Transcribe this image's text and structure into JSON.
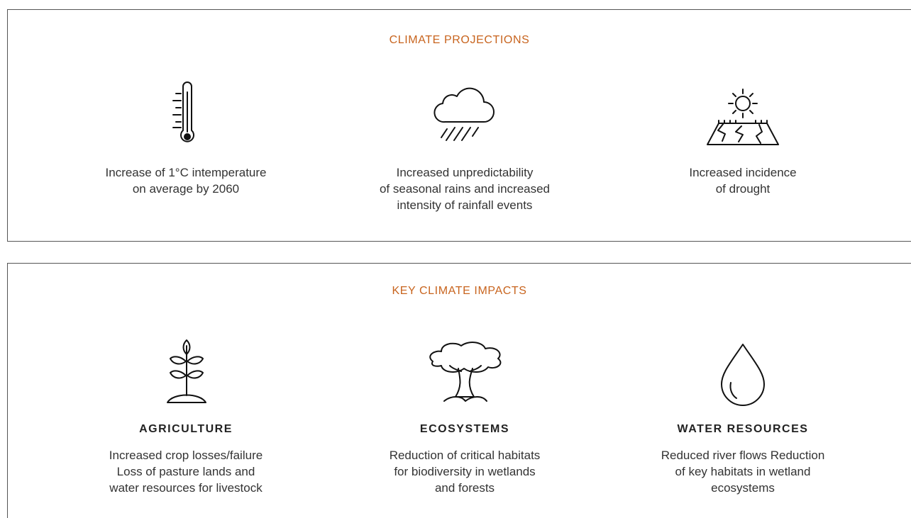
{
  "projections": {
    "title": "CLIMATE PROJECTIONS",
    "items": [
      {
        "lines": [
          "Increase of 1°C intemperature",
          "on average by 2060"
        ]
      },
      {
        "lines": [
          "Increased unpredictability",
          "of seasonal rains and increased",
          "intensity of rainfall events"
        ]
      },
      {
        "lines": [
          "Increased incidence",
          "of drought"
        ]
      }
    ]
  },
  "impacts": {
    "title": "KEY CLIMATE IMPACTS",
    "items": [
      {
        "heading": "AGRICULTURE",
        "lines": [
          "Increased crop losses/failure",
          "Loss of pasture lands and",
          "water resources for livestock"
        ]
      },
      {
        "heading": "ECOSYSTEMS",
        "lines": [
          "Reduction of critical habitats",
          "for biodiversity in wetlands",
          "and forests"
        ]
      },
      {
        "heading": "WATER RESOURCES",
        "lines": [
          "Reduced river flows Reduction",
          "of key habitats in wetland",
          "ecosystems"
        ]
      }
    ]
  }
}
